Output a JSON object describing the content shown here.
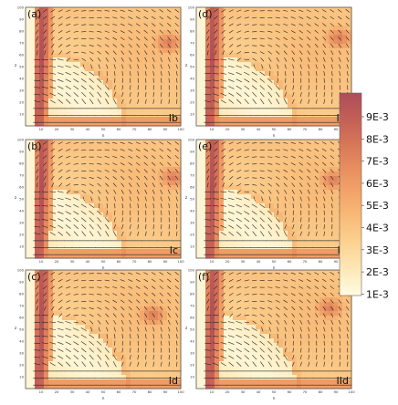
{
  "figure": {
    "panels": [
      {
        "id": "a",
        "label": "(a)",
        "corner_label": "Ib",
        "ylabel": "z",
        "xlabel": "n",
        "plume_radius": 0.62,
        "hot_spot": [
          0.92,
          0.7
        ]
      },
      {
        "id": "d",
        "label": "(d)",
        "corner_label": "IIb",
        "ylabel": "z",
        "xlabel": "n",
        "plume_radius": 0.62,
        "hot_spot": [
          0.92,
          0.74
        ]
      },
      {
        "id": "b",
        "label": "(b)",
        "corner_label": "Ic",
        "ylabel": "z",
        "xlabel": "n",
        "plume_radius": 0.62,
        "hot_spot": [
          0.95,
          0.68
        ]
      },
      {
        "id": "e",
        "label": "(e)",
        "corner_label": "IIc",
        "ylabel": "z",
        "xlabel": "n",
        "plume_radius": 0.62,
        "hot_spot": [
          0.88,
          0.66
        ]
      },
      {
        "id": "c",
        "label": "(c)",
        "corner_label": "Id",
        "ylabel": "z",
        "xlabel": "n",
        "plume_radius": 0.64,
        "hot_spot": [
          0.82,
          0.62
        ]
      },
      {
        "id": "f",
        "label": "(f)",
        "corner_label": "IId",
        "ylabel": "z",
        "xlabel": "n",
        "plume_radius": 0.64,
        "hot_spot": [
          0.86,
          0.68
        ]
      }
    ],
    "axes": {
      "xticks": [
        "10",
        "20",
        "30",
        "40",
        "50",
        "60",
        "70",
        "80",
        "90",
        "100"
      ],
      "yticks": [
        "10",
        "20",
        "30",
        "40",
        "50",
        "60",
        "70",
        "80",
        "90",
        "100"
      ]
    },
    "colorbar": {
      "labels": [
        "9E-3",
        "8E-3",
        "7E-3",
        "6E-3",
        "5E-3",
        "4E-3",
        "3E-3",
        "2E-3",
        "1E-3"
      ],
      "colors": [
        "#fffbe2",
        "#fde9b8",
        "#fcd494",
        "#f9bd7a",
        "#f3a56a",
        "#e88f60",
        "#d77658",
        "#c25f57",
        "#ad4d58"
      ]
    }
  },
  "chart_data": {
    "type": "heatmap",
    "title": "",
    "xlabel": "n",
    "ylabel": "z",
    "xlim": [
      0,
      100
    ],
    "ylim": [
      0,
      100
    ],
    "colorbar_range": [
      0.001,
      0.009
    ],
    "colorbar_ticks": [
      0.009,
      0.008,
      0.007,
      0.006,
      0.005,
      0.004,
      0.003,
      0.002,
      0.001
    ],
    "panels": [
      "(a) Ib",
      "(d) IIb",
      "(b) Ic",
      "(e) IIc",
      "(c) Id",
      "(f) IId"
    ],
    "overlay": "velocity vector field (arrows)"
  }
}
